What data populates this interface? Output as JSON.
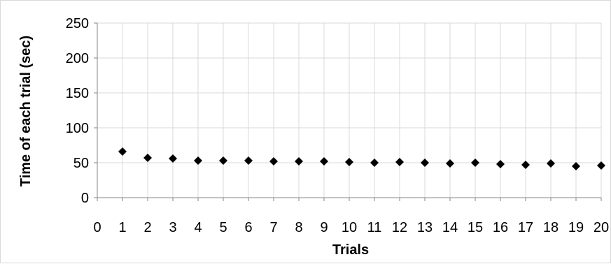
{
  "chart_data": {
    "type": "scatter",
    "title": "",
    "xlabel": "Trials",
    "ylabel": "Time of each trial (sec)",
    "xlim": [
      0,
      20
    ],
    "ylim": [
      0,
      250
    ],
    "x_ticks": [
      0,
      1,
      2,
      3,
      4,
      5,
      6,
      7,
      8,
      9,
      10,
      11,
      12,
      13,
      14,
      15,
      16,
      17,
      18,
      19,
      20
    ],
    "y_ticks": [
      0,
      50,
      100,
      150,
      200,
      250
    ],
    "grid": {
      "horizontal": true,
      "vertical": true
    },
    "legend": "none",
    "marker": "diamond",
    "colors": {
      "marker": "#000000",
      "grid": "#d9d9d9",
      "axis": "#868686"
    },
    "series": [
      {
        "x": [
          1,
          2,
          3,
          4,
          5,
          6,
          7,
          8,
          9,
          10,
          11,
          12,
          13,
          14,
          15,
          16,
          17,
          18,
          19,
          20
        ],
        "y": [
          66,
          57,
          56,
          53,
          53,
          53,
          52,
          52,
          52,
          51,
          50,
          51,
          50,
          49,
          50,
          48,
          47,
          49,
          45,
          46
        ]
      }
    ]
  }
}
